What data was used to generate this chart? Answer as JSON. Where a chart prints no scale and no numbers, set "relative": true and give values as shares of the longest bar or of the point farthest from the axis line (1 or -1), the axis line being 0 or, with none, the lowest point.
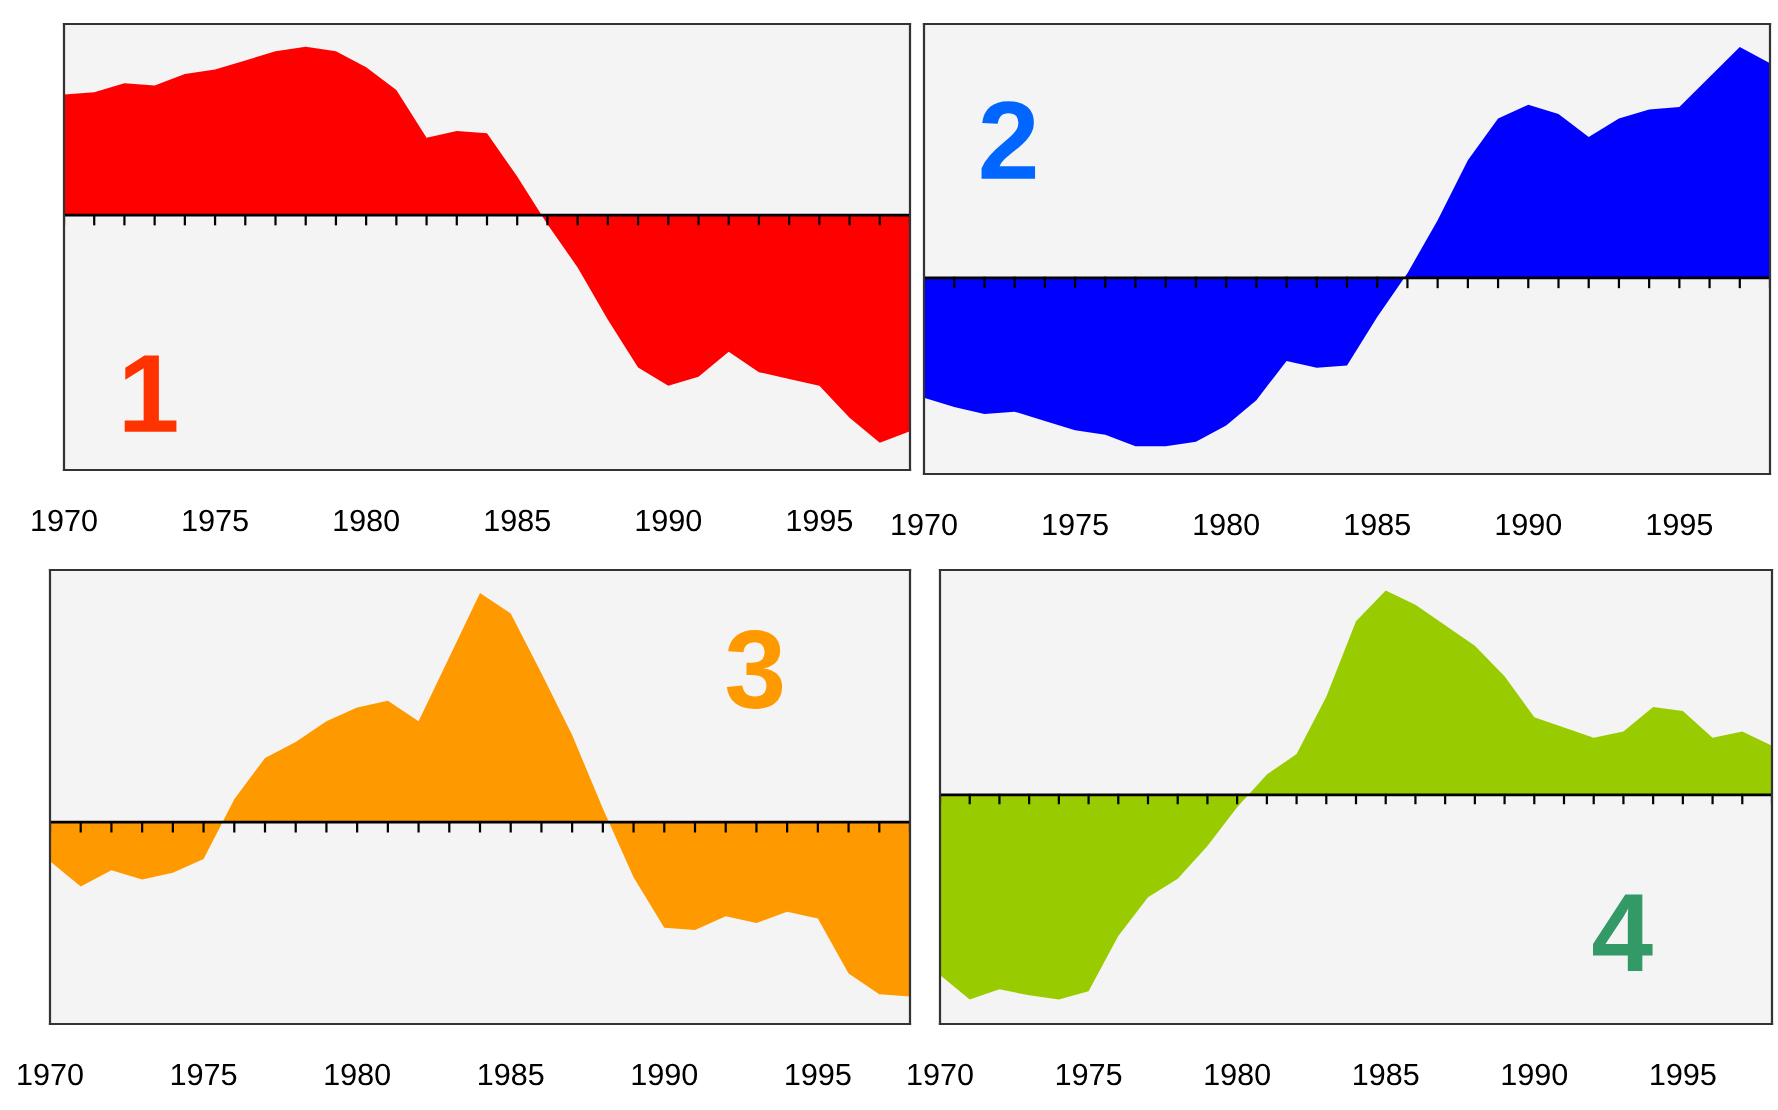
{
  "chart_data": [
    {
      "type": "area",
      "relative": true,
      "annotations": [
        "1"
      ],
      "x": [
        1970,
        1971,
        1972,
        1973,
        1974,
        1975,
        1976,
        1977,
        1978,
        1979,
        1980,
        1981,
        1982,
        1983,
        1984,
        1985,
        1986,
        1987,
        1988,
        1989,
        1990,
        1991,
        1992,
        1993,
        1994,
        1995,
        1996,
        1997,
        1998
      ],
      "xlim": [
        1970,
        1998
      ],
      "xticks": [
        1970,
        1975,
        1980,
        1985,
        1990,
        1995
      ],
      "series": [
        {
          "color": "#ff0000",
          "values": [
            0.53,
            0.54,
            0.58,
            0.57,
            0.62,
            0.64,
            0.68,
            0.72,
            0.74,
            0.72,
            0.65,
            0.55,
            0.34,
            0.37,
            0.36,
            0.17,
            -0.04,
            -0.23,
            -0.46,
            -0.67,
            -0.75,
            -0.71,
            -0.6,
            -0.69,
            -0.72,
            -0.75,
            -0.89,
            -1.0,
            -0.95
          ]
        }
      ]
    },
    {
      "type": "area",
      "relative": true,
      "annotations": [
        "2"
      ],
      "x": [
        1970,
        1971,
        1972,
        1973,
        1974,
        1975,
        1976,
        1977,
        1978,
        1979,
        1980,
        1981,
        1982,
        1983,
        1984,
        1985,
        1986,
        1987,
        1988,
        1989,
        1990,
        1991,
        1992,
        1993,
        1994,
        1995,
        1996,
        1997,
        1998
      ],
      "xlim": [
        1970,
        1998
      ],
      "xticks": [
        1970,
        1975,
        1980,
        1985,
        1990,
        1995
      ],
      "series": [
        {
          "color": "#0000ff",
          "values": [
            -0.52,
            -0.56,
            -0.59,
            -0.58,
            -0.62,
            -0.66,
            -0.68,
            -0.73,
            -0.73,
            -0.71,
            -0.64,
            -0.53,
            -0.36,
            -0.39,
            -0.38,
            -0.17,
            0.02,
            0.25,
            0.51,
            0.69,
            0.75,
            0.71,
            0.61,
            0.69,
            0.73,
            0.74,
            0.87,
            1.0,
            0.93
          ]
        }
      ]
    },
    {
      "type": "area",
      "relative": true,
      "annotations": [
        "3"
      ],
      "x": [
        1970,
        1971,
        1972,
        1973,
        1974,
        1975,
        1976,
        1977,
        1978,
        1979,
        1980,
        1981,
        1982,
        1983,
        1984,
        1985,
        1986,
        1987,
        1988,
        1989,
        1990,
        1991,
        1992,
        1993,
        1994,
        1995,
        1996,
        1997,
        1998
      ],
      "xlim": [
        1970,
        1998
      ],
      "xticks": [
        1970,
        1975,
        1980,
        1985,
        1990,
        1995
      ],
      "series": [
        {
          "color": "#ff9900",
          "values": [
            -0.17,
            -0.28,
            -0.21,
            -0.25,
            -0.22,
            -0.16,
            0.1,
            0.28,
            0.35,
            0.44,
            0.5,
            0.53,
            0.44,
            0.72,
            1.0,
            0.91,
            0.65,
            0.38,
            0.06,
            -0.24,
            -0.46,
            -0.47,
            -0.41,
            -0.44,
            -0.39,
            -0.42,
            -0.66,
            -0.75,
            -0.76
          ]
        }
      ]
    },
    {
      "type": "area",
      "relative": true,
      "annotations": [
        "4"
      ],
      "x": [
        1970,
        1971,
        1972,
        1973,
        1974,
        1975,
        1976,
        1977,
        1978,
        1979,
        1980,
        1981,
        1982,
        1983,
        1984,
        1985,
        1986,
        1987,
        1988,
        1989,
        1990,
        1991,
        1992,
        1993,
        1994,
        1995,
        1996,
        1997,
        1998
      ],
      "xlim": [
        1970,
        1998
      ],
      "xticks": [
        1970,
        1975,
        1980,
        1985,
        1990,
        1995
      ],
      "series": [
        {
          "color": "#99cc00",
          "values": [
            -0.88,
            -1.0,
            -0.95,
            -0.98,
            -1.0,
            -0.96,
            -0.69,
            -0.5,
            -0.41,
            -0.25,
            -0.06,
            0.1,
            0.2,
            0.48,
            0.85,
            1.0,
            0.93,
            0.83,
            0.73,
            0.58,
            0.38,
            0.33,
            0.28,
            0.31,
            0.43,
            0.41,
            0.28,
            0.31,
            0.24
          ]
        }
      ]
    }
  ]
}
